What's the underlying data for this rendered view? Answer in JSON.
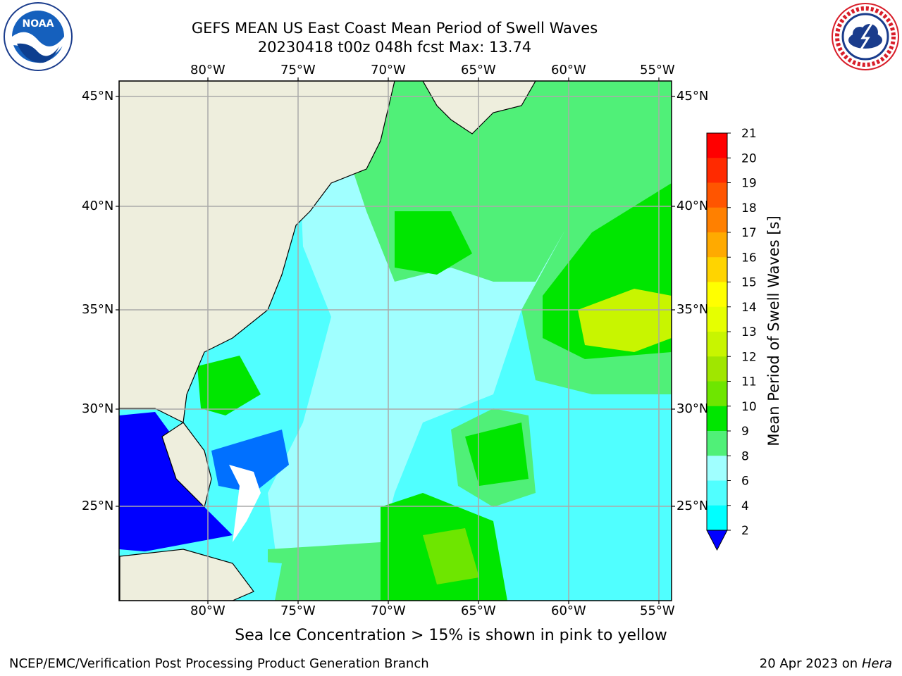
{
  "title_line1": "GEFS MEAN US East Coast Mean Period of Swell Waves",
  "title_line2": "20230418 t00z 048h fcst   Max: 13.74",
  "lon_labels": [
    "80°W",
    "75°W",
    "70°W",
    "65°W",
    "60°W",
    "55°W"
  ],
  "lat_labels": [
    "45°N",
    "40°N",
    "35°N",
    "30°N",
    "25°N"
  ],
  "colorbar": {
    "label": "Mean Period of Swell Waves [s]",
    "ticks": [
      "21",
      "20",
      "19",
      "18",
      "17",
      "16",
      "15",
      "14",
      "13",
      "12",
      "11",
      "10",
      "9",
      "8",
      "6",
      "4",
      "2"
    ],
    "colors": [
      "#ff0000",
      "#ff2a00",
      "#ff5500",
      "#ff8000",
      "#ffaa00",
      "#ffd400",
      "#ffff00",
      "#e6ff00",
      "#c8f500",
      "#a0e600",
      "#6ee600",
      "#00e600",
      "#50f078",
      "#a0ffff",
      "#50ffff",
      "#00ffff",
      "#0070ff",
      "#0000ff"
    ]
  },
  "caption": "Sea Ice Concentration > 15% is shown in pink to yellow",
  "footer_left": "NCEP/EMC/Verification Post Processing Product Generation Branch",
  "footer_right_date": "20 Apr 2023 on ",
  "footer_right_host": "Hera",
  "logos": {
    "noaa_text": "NOAA",
    "nws_ring_text": "NATIONAL WEATHER SERVICE"
  }
}
